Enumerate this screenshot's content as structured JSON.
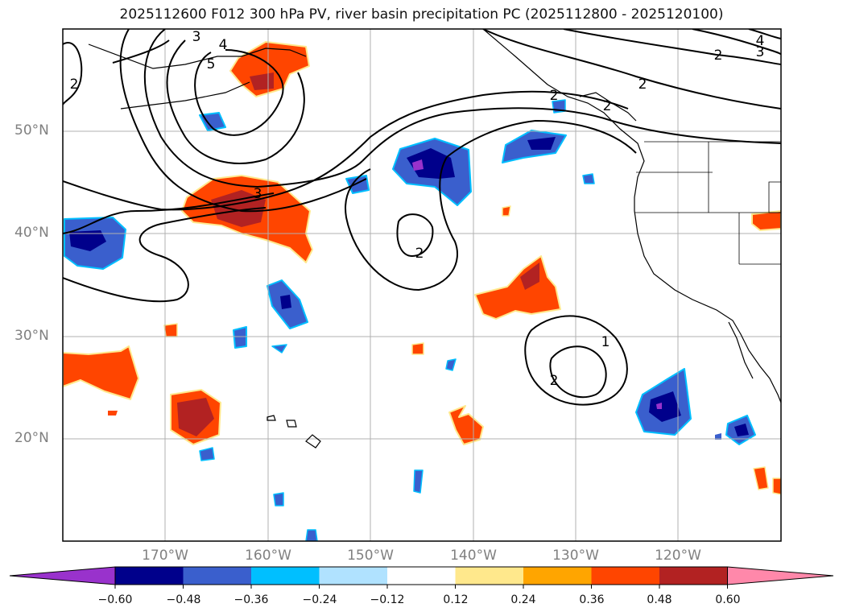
{
  "title": "2025112600 F012 300 hPa PV, river basin precipitation PC (2025112800 - 2025120100)",
  "map": {
    "projection": "PlateCarree",
    "lon_range": [
      -180,
      -110
    ],
    "lat_range": [
      10,
      60
    ],
    "lat_labels": [
      "50°N",
      "40°N",
      "30°N",
      "20°N"
    ],
    "lon_labels": [
      "170°W",
      "160°W",
      "150°W",
      "140°W",
      "130°W",
      "120°W"
    ],
    "gridlines": true,
    "contour_labels": [
      "3",
      "4",
      "5",
      "2",
      "2",
      "4",
      "3",
      "2",
      "2",
      "2",
      "3",
      "2",
      "1",
      "2"
    ]
  },
  "colorbar": {
    "ticks": [
      "−0.60",
      "−0.48",
      "−0.36",
      "−0.24",
      "−0.12",
      "0.12",
      "0.24",
      "0.36",
      "0.48",
      "0.60"
    ],
    "colors": [
      "#9932cc",
      "#00008b",
      "#3a5fcd",
      "#00bfff",
      "#b0e2ff",
      "#ffffff",
      "#ffe88c",
      "#ffa500",
      "#ff4500",
      "#b22222",
      "#ff88aa"
    ],
    "extend": "both"
  },
  "colors": {
    "contour": "#000000",
    "coast": "#000000",
    "grid": "#b0b0b0",
    "axis_text": "#808080"
  }
}
